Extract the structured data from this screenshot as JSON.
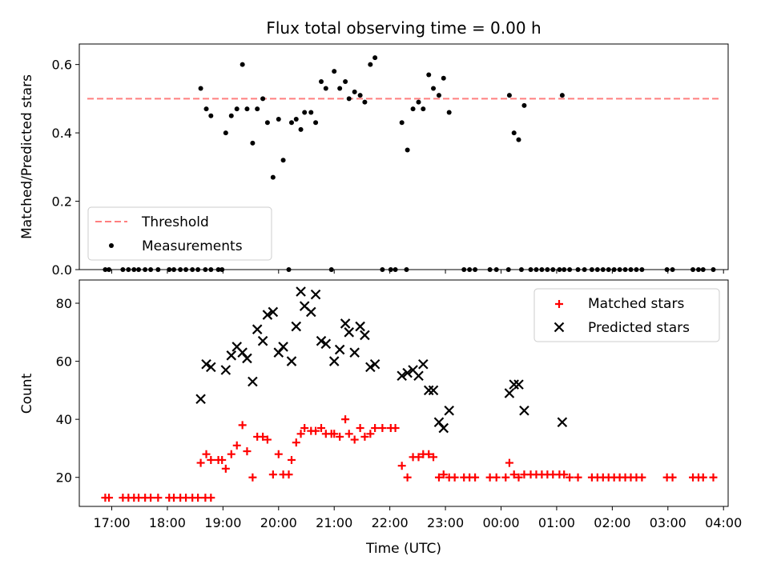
{
  "chart_data": [
    {
      "type": "scatter",
      "title": "Flux total observing time = 0.00 h",
      "xlabel": "",
      "ylabel": "Matched/Predicted stars",
      "xlim": [
        "16:25",
        "04:05"
      ],
      "ylim": [
        0,
        0.66
      ],
      "yticks": [
        0.0,
        0.2,
        0.4,
        0.6
      ],
      "ytick_labels": [
        "0.0",
        "0.2",
        "0.4",
        "0.6"
      ],
      "xticks": [
        "17:00",
        "18:00",
        "19:00",
        "20:00",
        "21:00",
        "22:00",
        "23:00",
        "00:00",
        "01:00",
        "02:00",
        "03:00",
        "04:00"
      ],
      "xtick_labels_shown": false,
      "grid": false,
      "legend": "lower-left",
      "threshold": {
        "name": "Threshold",
        "value": 0.5,
        "x_range": [
          "16:25",
          "04:05"
        ],
        "color": "#ff7f7f",
        "style": "dashed"
      },
      "series": [
        {
          "name": "Measurements",
          "marker": "dot",
          "color": "#000000",
          "points": [
            [
              "16:53",
              0
            ],
            [
              "16:57",
              0
            ],
            [
              "17:12",
              0
            ],
            [
              "17:18",
              0
            ],
            [
              "17:24",
              0
            ],
            [
              "17:29",
              0
            ],
            [
              "17:36",
              0
            ],
            [
              "17:42",
              0
            ],
            [
              "17:50",
              0
            ],
            [
              "18:02",
              0
            ],
            [
              "18:07",
              0
            ],
            [
              "18:14",
              0
            ],
            [
              "18:20",
              0
            ],
            [
              "18:27",
              0
            ],
            [
              "18:33",
              0
            ],
            [
              "18:41",
              0
            ],
            [
              "18:47",
              0
            ],
            [
              "18:36",
              0.53
            ],
            [
              "18:42",
              0.47
            ],
            [
              "18:47",
              0.45
            ],
            [
              "18:55",
              0
            ],
            [
              "18:59",
              0
            ],
            [
              "19:03",
              0.4
            ],
            [
              "19:09",
              0.45
            ],
            [
              "19:15",
              0.47
            ],
            [
              "19:21",
              0.6
            ],
            [
              "19:26",
              0.47
            ],
            [
              "19:32",
              0.37
            ],
            [
              "19:37",
              0.47
            ],
            [
              "19:43",
              0.5
            ],
            [
              "19:48",
              0.43
            ],
            [
              "19:54",
              0.27
            ],
            [
              "20:00",
              0.44
            ],
            [
              "20:05",
              0.32
            ],
            [
              "20:11",
              0
            ],
            [
              "20:14",
              0.43
            ],
            [
              "20:19",
              0.44
            ],
            [
              "20:24",
              0.41
            ],
            [
              "20:28",
              0.46
            ],
            [
              "20:35",
              0.46
            ],
            [
              "20:40",
              0.43
            ],
            [
              "20:46",
              0.55
            ],
            [
              "20:51",
              0.53
            ],
            [
              "20:57",
              0
            ],
            [
              "21:00",
              0.58
            ],
            [
              "21:06",
              0.53
            ],
            [
              "21:12",
              0.55
            ],
            [
              "21:16",
              0.5
            ],
            [
              "21:22",
              0.52
            ],
            [
              "21:28",
              0.51
            ],
            [
              "21:33",
              0.49
            ],
            [
              "21:39",
              0.6
            ],
            [
              "21:44",
              0.62
            ],
            [
              "21:52",
              0
            ],
            [
              "22:01",
              0
            ],
            [
              "22:06",
              0
            ],
            [
              "22:18",
              0
            ],
            [
              "22:13",
              0.43
            ],
            [
              "22:19",
              0.35
            ],
            [
              "22:25",
              0.47
            ],
            [
              "22:31",
              0.49
            ],
            [
              "22:36",
              0.47
            ],
            [
              "22:42",
              0.57
            ],
            [
              "22:47",
              0.53
            ],
            [
              "22:53",
              0.51
            ],
            [
              "22:58",
              0.56
            ],
            [
              "23:04",
              0.46
            ],
            [
              "23:20",
              0
            ],
            [
              "23:26",
              0
            ],
            [
              "23:32",
              0
            ],
            [
              "23:48",
              0
            ],
            [
              "23:55",
              0
            ],
            [
              "00:08",
              0
            ],
            [
              "00:09",
              0.51
            ],
            [
              "00:14",
              0.4
            ],
            [
              "00:19",
              0.38
            ],
            [
              "00:25",
              0.48
            ],
            [
              "00:22",
              0
            ],
            [
              "00:32",
              0
            ],
            [
              "00:38",
              0
            ],
            [
              "00:44",
              0
            ],
            [
              "00:50",
              0
            ],
            [
              "00:56",
              0
            ],
            [
              "01:03",
              0
            ],
            [
              "01:08",
              0
            ],
            [
              "01:14",
              0
            ],
            [
              "01:23",
              0
            ],
            [
              "01:06",
              0.51
            ],
            [
              "01:30",
              0
            ],
            [
              "01:38",
              0
            ],
            [
              "01:44",
              0
            ],
            [
              "01:50",
              0
            ],
            [
              "01:56",
              0
            ],
            [
              "02:02",
              0
            ],
            [
              "02:08",
              0
            ],
            [
              "02:14",
              0
            ],
            [
              "02:20",
              0
            ],
            [
              "02:26",
              0
            ],
            [
              "02:32",
              0
            ],
            [
              "02:59",
              0
            ],
            [
              "03:05",
              0
            ],
            [
              "03:27",
              0
            ],
            [
              "03:33",
              0
            ],
            [
              "03:38",
              0
            ],
            [
              "03:49",
              0
            ]
          ]
        }
      ]
    },
    {
      "type": "scatter",
      "title": "",
      "xlabel": "Time (UTC)",
      "ylabel": "Count",
      "xlim": [
        "16:25",
        "04:05"
      ],
      "ylim": [
        10,
        88
      ],
      "yticks": [
        20,
        40,
        60,
        80
      ],
      "ytick_labels": [
        "20",
        "40",
        "60",
        "80"
      ],
      "xticks": [
        "17:00",
        "18:00",
        "19:00",
        "20:00",
        "21:00",
        "22:00",
        "23:00",
        "00:00",
        "01:00",
        "02:00",
        "03:00",
        "04:00"
      ],
      "xtick_labels": [
        "17:00",
        "18:00",
        "19:00",
        "20:00",
        "21:00",
        "22:00",
        "23:00",
        "00:00",
        "01:00",
        "02:00",
        "03:00",
        "04:00"
      ],
      "grid": false,
      "legend": "upper-right",
      "series": [
        {
          "name": "Matched stars",
          "marker": "plus",
          "color": "#ff0000",
          "points": [
            [
              "16:53",
              13
            ],
            [
              "16:57",
              13
            ],
            [
              "17:12",
              13
            ],
            [
              "17:18",
              13
            ],
            [
              "17:24",
              13
            ],
            [
              "17:29",
              13
            ],
            [
              "17:36",
              13
            ],
            [
              "17:42",
              13
            ],
            [
              "17:50",
              13
            ],
            [
              "18:02",
              13
            ],
            [
              "18:07",
              13
            ],
            [
              "18:14",
              13
            ],
            [
              "18:20",
              13
            ],
            [
              "18:27",
              13
            ],
            [
              "18:33",
              13
            ],
            [
              "18:41",
              13
            ],
            [
              "18:47",
              13
            ],
            [
              "18:36",
              25
            ],
            [
              "18:42",
              28
            ],
            [
              "18:47",
              26
            ],
            [
              "18:55",
              26
            ],
            [
              "18:59",
              26
            ],
            [
              "19:03",
              23
            ],
            [
              "19:09",
              28
            ],
            [
              "19:15",
              31
            ],
            [
              "19:21",
              38
            ],
            [
              "19:26",
              29
            ],
            [
              "19:32",
              20
            ],
            [
              "19:37",
              34
            ],
            [
              "19:43",
              34
            ],
            [
              "19:48",
              33
            ],
            [
              "19:54",
              21
            ],
            [
              "20:00",
              28
            ],
            [
              "20:05",
              21
            ],
            [
              "20:11",
              21
            ],
            [
              "20:14",
              26
            ],
            [
              "20:19",
              32
            ],
            [
              "20:24",
              35
            ],
            [
              "20:28",
              37
            ],
            [
              "20:35",
              36
            ],
            [
              "20:40",
              36
            ],
            [
              "20:46",
              37
            ],
            [
              "20:51",
              35
            ],
            [
              "20:57",
              35
            ],
            [
              "21:00",
              35
            ],
            [
              "21:06",
              34
            ],
            [
              "21:12",
              40
            ],
            [
              "21:16",
              35
            ],
            [
              "21:22",
              33
            ],
            [
              "21:28",
              37
            ],
            [
              "21:33",
              34
            ],
            [
              "21:39",
              35
            ],
            [
              "21:44",
              37
            ],
            [
              "21:52",
              37
            ],
            [
              "22:01",
              37
            ],
            [
              "22:06",
              37
            ],
            [
              "22:13",
              24
            ],
            [
              "22:19",
              20
            ],
            [
              "22:25",
              27
            ],
            [
              "22:31",
              27
            ],
            [
              "22:36",
              28
            ],
            [
              "22:42",
              28
            ],
            [
              "22:47",
              27
            ],
            [
              "22:53",
              20
            ],
            [
              "22:58",
              21
            ],
            [
              "23:04",
              20
            ],
            [
              "23:10",
              20
            ],
            [
              "23:20",
              20
            ],
            [
              "23:26",
              20
            ],
            [
              "23:32",
              20
            ],
            [
              "23:48",
              20
            ],
            [
              "23:55",
              20
            ],
            [
              "00:05",
              20
            ],
            [
              "00:09",
              25
            ],
            [
              "00:14",
              21
            ],
            [
              "00:19",
              20
            ],
            [
              "00:25",
              21
            ],
            [
              "00:32",
              21
            ],
            [
              "00:38",
              21
            ],
            [
              "00:44",
              21
            ],
            [
              "00:50",
              21
            ],
            [
              "00:56",
              21
            ],
            [
              "01:03",
              21
            ],
            [
              "01:08",
              21
            ],
            [
              "01:14",
              20
            ],
            [
              "01:23",
              20
            ],
            [
              "01:38",
              20
            ],
            [
              "01:44",
              20
            ],
            [
              "01:50",
              20
            ],
            [
              "01:56",
              20
            ],
            [
              "02:02",
              20
            ],
            [
              "02:08",
              20
            ],
            [
              "02:14",
              20
            ],
            [
              "02:20",
              20
            ],
            [
              "02:26",
              20
            ],
            [
              "02:32",
              20
            ],
            [
              "02:59",
              20
            ],
            [
              "03:05",
              20
            ],
            [
              "03:27",
              20
            ],
            [
              "03:33",
              20
            ],
            [
              "03:38",
              20
            ],
            [
              "03:49",
              20
            ]
          ]
        },
        {
          "name": "Predicted stars",
          "marker": "x",
          "color": "#000000",
          "points": [
            [
              "18:36",
              47
            ],
            [
              "18:42",
              59
            ],
            [
              "18:47",
              58
            ],
            [
              "19:03",
              57
            ],
            [
              "19:09",
              62
            ],
            [
              "19:15",
              65
            ],
            [
              "19:21",
              63
            ],
            [
              "19:26",
              61
            ],
            [
              "19:32",
              53
            ],
            [
              "19:37",
              71
            ],
            [
              "19:43",
              67
            ],
            [
              "19:48",
              76
            ],
            [
              "19:54",
              77
            ],
            [
              "20:00",
              63
            ],
            [
              "20:05",
              65
            ],
            [
              "20:14",
              60
            ],
            [
              "20:19",
              72
            ],
            [
              "20:24",
              84
            ],
            [
              "20:28",
              79
            ],
            [
              "20:35",
              77
            ],
            [
              "20:40",
              83
            ],
            [
              "20:46",
              67
            ],
            [
              "20:51",
              66
            ],
            [
              "21:00",
              60
            ],
            [
              "21:06",
              64
            ],
            [
              "21:12",
              73
            ],
            [
              "21:16",
              70
            ],
            [
              "21:22",
              63
            ],
            [
              "21:28",
              72
            ],
            [
              "21:33",
              69
            ],
            [
              "21:39",
              58
            ],
            [
              "21:44",
              59
            ],
            [
              "22:13",
              55
            ],
            [
              "22:19",
              56
            ],
            [
              "22:25",
              57
            ],
            [
              "22:31",
              55
            ],
            [
              "22:36",
              59
            ],
            [
              "22:42",
              50
            ],
            [
              "22:47",
              50
            ],
            [
              "22:53",
              39
            ],
            [
              "22:58",
              37
            ],
            [
              "23:04",
              43
            ],
            [
              "00:09",
              49
            ],
            [
              "00:14",
              52
            ],
            [
              "00:19",
              52
            ],
            [
              "00:25",
              43
            ],
            [
              "01:06",
              39
            ]
          ]
        }
      ]
    }
  ]
}
